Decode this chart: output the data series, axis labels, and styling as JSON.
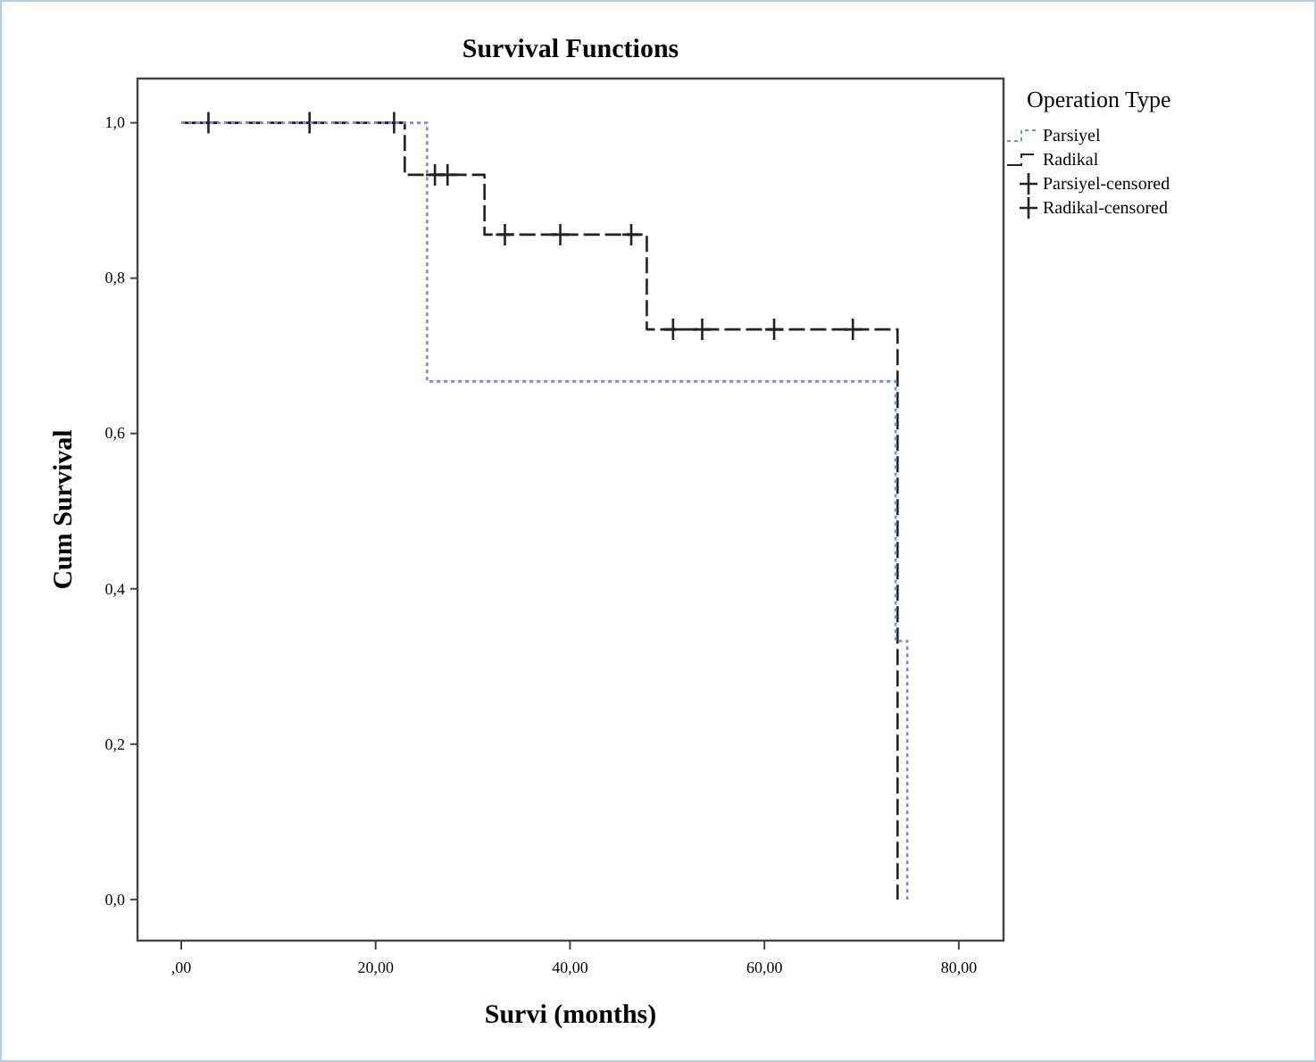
{
  "chart_data": {
    "type": "step",
    "title": "Survival Functions",
    "xlabel": "Survi (months)",
    "ylabel": "Cum Survival",
    "legend_title": "Operation Type",
    "legend": "right",
    "xlim": [
      -4.5,
      84.6
    ],
    "ylim": [
      -0.053,
      1.057
    ],
    "xticks": [
      {
        "value": 0,
        "label": ",00"
      },
      {
        "value": 20,
        "label": "20,00"
      },
      {
        "value": 40,
        "label": "40,00"
      },
      {
        "value": 60,
        "label": "60,00"
      },
      {
        "value": 80,
        "label": "80,00"
      }
    ],
    "yticks": [
      {
        "value": 0,
        "label": "0,0"
      },
      {
        "value": 0.2,
        "label": "0,2"
      },
      {
        "value": 0.4,
        "label": "0,4"
      },
      {
        "value": 0.6,
        "label": "0,6"
      },
      {
        "value": 0.8,
        "label": "0,8"
      },
      {
        "value": 1,
        "label": "1,0"
      }
    ],
    "series": [
      {
        "name": "Parsiyel",
        "color": "#7b8fd0",
        "line_style": "dotted",
        "x": [
          0,
          25.3,
          73.5,
          74.7
        ],
        "values": [
          1,
          0.667,
          0.333,
          0
        ]
      },
      {
        "name": "Radikal",
        "color": "#222222",
        "line_style": "dashed",
        "x": [
          0,
          23,
          31.2,
          47.9,
          73.7
        ],
        "values": [
          1,
          0.933,
          0.856,
          0.734,
          0
        ]
      },
      {
        "name": "Parsiyel-censored",
        "type": "scatter",
        "marker": "cross",
        "color": "#222222"
      },
      {
        "name": "Radikal-censored",
        "type": "scatter",
        "marker": "cross",
        "color": "#222222",
        "x": [
          2.8,
          13.2,
          21.9,
          26.1,
          27.4,
          33.3,
          39,
          46.3,
          50.6,
          53.6,
          61,
          69.1
        ],
        "values": [
          1,
          1,
          1,
          0.933,
          0.933,
          0.856,
          0.856,
          0.856,
          0.734,
          0.734,
          0.734,
          0.734
        ]
      }
    ]
  }
}
